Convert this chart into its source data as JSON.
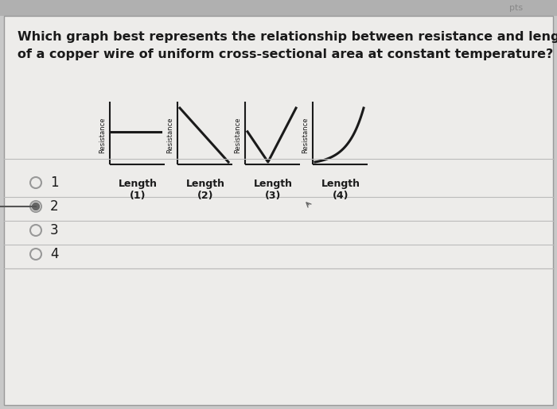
{
  "bg_color": "#c8c8c8",
  "panel_color": "#edecea",
  "title_line1": "Which graph best represents the relationship between resistance and length",
  "title_line2": "of a copper wire of uniform cross-sectional area at constant temperature?",
  "graph_labels": [
    "Length\n(1)",
    "Length\n(2)",
    "Length\n(3)",
    "Length\n(4)"
  ],
  "ylabel": "Resistance",
  "options": [
    "1",
    "2",
    "3",
    "4"
  ],
  "selected_option": 2,
  "line_color": "#1a1a1a",
  "text_color": "#1a1a1a",
  "title_fontsize": 11.5,
  "graph_label_fontsize": 9,
  "resistance_label_fontsize": 6,
  "option_fontsize": 12
}
